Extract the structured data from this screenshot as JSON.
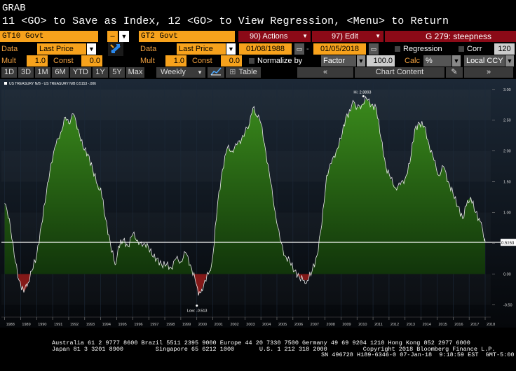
{
  "header": {
    "grab": "GRAB",
    "command": "11 <GO> to Save as Index, 12 <GO> to View Regression, <Menu> to Return"
  },
  "row1": {
    "security1": "GT10 Govt",
    "minus": "–",
    "security2": "GT2 Govt",
    "actions": "90) Actions",
    "edit": "97) Edit",
    "title": "G 279: steepness"
  },
  "row2": {
    "data1_label": "Data",
    "field1": "Last Price",
    "data2_label": "Data",
    "field2": "Last Price",
    "start_date": "01/08/1988",
    "end_date": "01/05/2018",
    "regression_label": "Regression",
    "corr_label": "Corr",
    "corr_value": "120"
  },
  "row3": {
    "mult1_label": "Mult",
    "mult1": "1.0",
    "const1_label": "Const",
    "const1": "0.0",
    "mult2_label": "Mult",
    "mult2": "1.0",
    "const2_label": "Const",
    "const2": "0.0",
    "normalize_label": "Normalize by",
    "normalize_value": "Factor",
    "normalize_number": "100.0",
    "calc_label": "Calc",
    "calc_value": "%",
    "currency": "Local CCY"
  },
  "row4": {
    "periods": [
      "1D",
      "3D",
      "1M",
      "6M",
      "YTD",
      "1Y",
      "5Y",
      "Max"
    ],
    "frequency": "Weekly",
    "table_label": "Table",
    "chart_content_label": "Chart Content"
  },
  "chart_data": {
    "type": "area",
    "legend": "US TREASURY N/B - US TREASURY N/B 0.5153 -.006",
    "x": [
      "1988",
      "1989",
      "1990",
      "1991",
      "1992",
      "1993",
      "1994",
      "1995",
      "1996",
      "1997",
      "1998",
      "1999",
      "2000",
      "2001",
      "2002",
      "2003",
      "2004",
      "2005",
      "2006",
      "2007",
      "2008",
      "2009",
      "2010",
      "2011",
      "2012",
      "2013",
      "2014",
      "2015",
      "2016",
      "2017",
      "2018"
    ],
    "points": [
      [
        1988.0,
        1.15
      ],
      [
        1988.3,
        0.9
      ],
      [
        1988.6,
        0.3
      ],
      [
        1988.9,
        -0.1
      ],
      [
        1989.2,
        -0.3
      ],
      [
        1989.4,
        -0.2
      ],
      [
        1989.7,
        0.05
      ],
      [
        1990.0,
        0.3
      ],
      [
        1990.3,
        0.8
      ],
      [
        1990.6,
        1.3
      ],
      [
        1990.9,
        1.8
      ],
      [
        1991.2,
        2.1
      ],
      [
        1991.5,
        2.3
      ],
      [
        1991.8,
        2.55
      ],
      [
        1992.0,
        2.45
      ],
      [
        1992.3,
        2.6
      ],
      [
        1992.6,
        2.35
      ],
      [
        1992.9,
        2.05
      ],
      [
        1993.2,
        1.95
      ],
      [
        1993.5,
        1.7
      ],
      [
        1993.8,
        1.45
      ],
      [
        1994.0,
        1.4
      ],
      [
        1994.3,
        0.9
      ],
      [
        1994.6,
        0.5
      ],
      [
        1994.9,
        0.15
      ],
      [
        1995.1,
        0.45
      ],
      [
        1995.4,
        0.55
      ],
      [
        1995.7,
        0.45
      ],
      [
        1996.0,
        0.65
      ],
      [
        1996.3,
        0.55
      ],
      [
        1996.6,
        0.45
      ],
      [
        1996.9,
        0.5
      ],
      [
        1997.2,
        0.3
      ],
      [
        1997.5,
        0.25
      ],
      [
        1997.8,
        0.15
      ],
      [
        1998.1,
        0.15
      ],
      [
        1998.4,
        0.1
      ],
      [
        1998.7,
        0.25
      ],
      [
        1999.0,
        0.2
      ],
      [
        1999.3,
        0.35
      ],
      [
        1999.6,
        0.15
      ],
      [
        1999.9,
        -0.1
      ],
      [
        2000.1,
        -0.35
      ],
      [
        2000.3,
        -0.25
      ],
      [
        2000.5,
        -0.1
      ],
      [
        2000.8,
        0.05
      ],
      [
        2001.0,
        0.3
      ],
      [
        2001.3,
        1.15
      ],
      [
        2001.6,
        1.7
      ],
      [
        2001.9,
        2.05
      ],
      [
        2002.2,
        2.0
      ],
      [
        2002.5,
        2.1
      ],
      [
        2002.8,
        2.2
      ],
      [
        2003.0,
        2.3
      ],
      [
        2003.3,
        2.45
      ],
      [
        2003.5,
        2.7
      ],
      [
        2003.8,
        2.55
      ],
      [
        2004.0,
        2.45
      ],
      [
        2004.3,
        2.0
      ],
      [
        2004.6,
        1.5
      ],
      [
        2004.9,
        1.0
      ],
      [
        2005.2,
        0.55
      ],
      [
        2005.5,
        0.3
      ],
      [
        2005.8,
        0.2
      ],
      [
        2006.1,
        0.05
      ],
      [
        2006.4,
        -0.05
      ],
      [
        2006.7,
        -0.1
      ],
      [
        2006.9,
        -0.1
      ],
      [
        2007.2,
        0.05
      ],
      [
        2007.5,
        0.3
      ],
      [
        2007.8,
        0.8
      ],
      [
        2008.1,
        1.6
      ],
      [
        2008.4,
        1.8
      ],
      [
        2008.7,
        2.0
      ],
      [
        2009.0,
        2.2
      ],
      [
        2009.3,
        2.55
      ],
      [
        2009.6,
        2.65
      ],
      [
        2009.8,
        2.8
      ],
      [
        2010.0,
        2.7
      ],
      [
        2010.3,
        2.75
      ],
      [
        2010.6,
        2.85
      ],
      [
        2010.9,
        2.75
      ],
      [
        2011.2,
        2.7
      ],
      [
        2011.5,
        2.2
      ],
      [
        2011.8,
        1.75
      ],
      [
        2012.1,
        1.55
      ],
      [
        2012.4,
        1.4
      ],
      [
        2012.7,
        1.45
      ],
      [
        2013.0,
        1.55
      ],
      [
        2013.3,
        1.8
      ],
      [
        2013.6,
        2.35
      ],
      [
        2013.9,
        2.45
      ],
      [
        2014.2,
        2.4
      ],
      [
        2014.5,
        2.1
      ],
      [
        2014.8,
        1.85
      ],
      [
        2015.1,
        1.6
      ],
      [
        2015.4,
        1.75
      ],
      [
        2015.7,
        1.5
      ],
      [
        2016.0,
        1.3
      ],
      [
        2016.3,
        1.1
      ],
      [
        2016.6,
        0.9
      ],
      [
        2016.9,
        1.2
      ],
      [
        2017.1,
        1.25
      ],
      [
        2017.4,
        1.0
      ],
      [
        2017.7,
        0.85
      ],
      [
        2017.9,
        0.6
      ],
      [
        2018.0,
        0.52
      ]
    ],
    "ylim": [
      -0.7,
      3.1
    ],
    "y_ticks": [
      "3.00",
      "2.50",
      "2.00",
      "1.50",
      "1.00",
      "0.50",
      "0.00",
      "-0.50"
    ],
    "current_value": "0.5153",
    "annotations": [
      {
        "label": "Hi: 2.8893",
        "x": 2010.4,
        "y": 2.8893
      },
      {
        "label": "Low: -0.513",
        "x": 2000.0,
        "y": -0.513
      }
    ],
    "positive_color": "#3a8a1c",
    "negative_color": "#8a1a1a"
  },
  "footer": {
    "line1": "Australia 61 2 9777 8600 Brazil 5511 2395 9000 Europe 44 20 7330 7500 Germany 49 69 9204 1210 Hong Kong 852 2977 6000",
    "line2": "Japan 81 3 3201 8900         Singapore 65 6212 1000       U.S. 1 212 318 2000          Copyright 2018 Bloomberg Finance L.P.",
    "line3": "SN 496728 H189-6346-0 07-Jan-18  9:18:59 EST  GMT-5:00"
  }
}
